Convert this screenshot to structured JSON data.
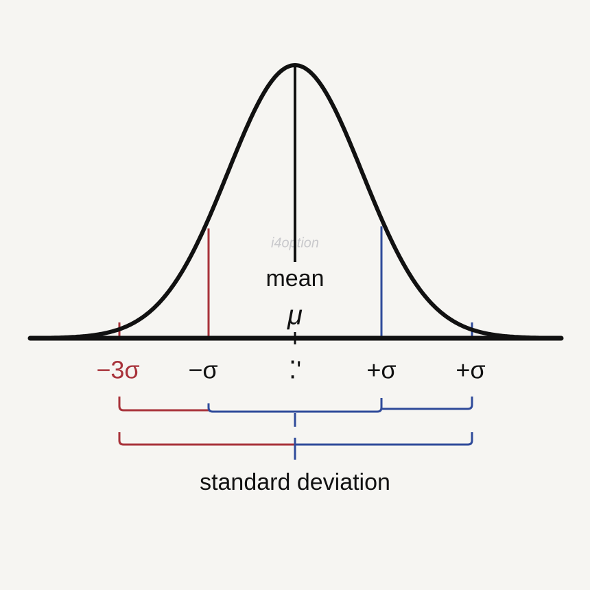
{
  "labels": {
    "mean": "mean",
    "mu": "μ",
    "watermark": "i4option",
    "ticks": [
      "−3σ",
      "−σ",
      "⁚'",
      "+σ",
      "+σ"
    ],
    "caption": "standard deviation"
  }
}
